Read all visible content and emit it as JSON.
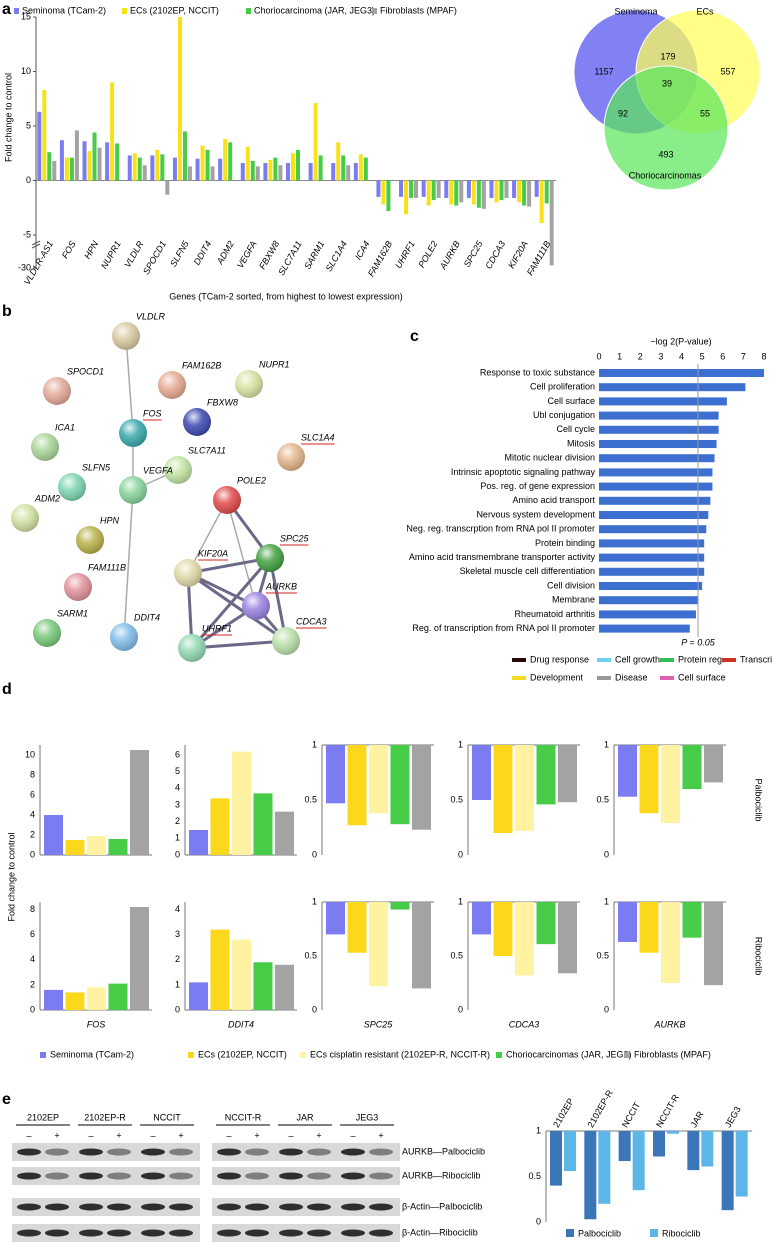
{
  "panel_labels": [
    "a",
    "b",
    "c",
    "d",
    "e"
  ],
  "chart_data": [
    {
      "type": "bar",
      "y_label": "Fold change to control",
      "x_label": "Genes (TCam-2 sorted, from highest to lowest expression)",
      "categories": [
        "VLDLR-AS1",
        "FOS",
        "HPN",
        "NUPR1",
        "VLDLR",
        "SPOCD1",
        "SLFN5",
        "DDIT4",
        "ADM2",
        "VEGFA",
        "FBXW8",
        "SLC7A11",
        "SARM1",
        "SLC1A4",
        "ICA4",
        "FAM162B",
        "UHRF1",
        "POLE2",
        "AURKB",
        "SPC25",
        "CDCA3",
        "KIF20A",
        "FAM111B"
      ],
      "category_colors": [
        "#d42020",
        "#d42020",
        "#000000",
        "#000000",
        "#000000",
        "#000000",
        "#000000",
        "#000000",
        "#000000",
        "#000000",
        "#000000",
        "#000000",
        "#000000",
        "#d42020",
        "#000000",
        "#000000",
        "#d42020",
        "#d42020",
        "#d42020",
        "#d42020",
        "#d42020",
        "#d42020",
        "#d42020"
      ],
      "series": [
        {
          "name": "Seminoma (TCam-2)",
          "color": "#7b7bf2",
          "values": [
            6.3,
            3.7,
            3.6,
            3.5,
            2.3,
            2.3,
            2.1,
            2.0,
            2.0,
            1.6,
            1.6,
            1.6,
            1.6,
            1.6,
            1.6,
            -1.5,
            -1.5,
            -1.5,
            -1.6,
            -1.6,
            -1.6,
            -1.6,
            -1.5
          ]
        },
        {
          "name": "ECs (2102EP, NCCIT)",
          "color": "#f7e21a",
          "values": [
            8.3,
            2.1,
            2.7,
            9.0,
            2.5,
            2.8,
            15,
            3.2,
            3.8,
            3.1,
            1.9,
            2.5,
            7.1,
            3.5,
            2.4,
            -2.2,
            -3.1,
            -2.3,
            -2.2,
            -2.2,
            -2.0,
            -2.0,
            -3.9
          ]
        },
        {
          "name": "Choriocarcinoma (JAR, JEG3)",
          "color": "#46cc46",
          "values": [
            2.6,
            2.1,
            4.4,
            3.4,
            2.1,
            2.4,
            4.5,
            2.8,
            3.5,
            1.8,
            2.1,
            2.8,
            2.3,
            2.3,
            2.1,
            -2.8,
            -1.6,
            -1.8,
            -2.3,
            -2.5,
            -1.8,
            -2.3,
            -2.1
          ]
        },
        {
          "name": "Fibroblasts (MPAF)",
          "color": "#a3a3a3",
          "values": [
            1.8,
            4.6,
            3.0,
            null,
            1.4,
            -1.3,
            1.3,
            1.3,
            null,
            1.3,
            1.4,
            null,
            null,
            1.4,
            null,
            null,
            -1.6,
            -1.6,
            -2.0,
            -2.6,
            -1.6,
            -2.4,
            -28
          ]
        }
      ],
      "ylim": [
        -30,
        15
      ],
      "yticks": [
        15,
        10,
        5,
        0,
        -5,
        -30
      ],
      "axis_break": true,
      "legend": "top"
    },
    {
      "type": "venn",
      "sets": [
        {
          "name": "Seminoma",
          "color": "#5050f0",
          "label_color": "#2a2ae0"
        },
        {
          "name": "ECs",
          "color": "#ffff5a",
          "label_color": "#85852a"
        },
        {
          "name": "Choriocarcinomas",
          "color": "#5ce65c",
          "label_color": "#229922"
        }
      ],
      "values": [
        1157,
        557,
        493,
        179,
        92,
        55,
        39
      ]
    },
    {
      "type": "barh",
      "x_label": "−log 2(P-value)",
      "categories": [
        "Response to toxic substance",
        "Cell proliferation",
        "Cell surface",
        "Ubl conjugation",
        "Cell cycle",
        "Mitosis",
        "Mitotic nuclear division",
        "Intrinsic apoptotic signaling pathway",
        "Pos. reg. of gene expression",
        "Amino acid transport",
        "Nervous system development",
        "Neg. reg. transcrption from RNA pol II promoter",
        "Protein binding",
        "Amino acid transmembrane transporter activity",
        "Skeletal muscle cell differentiation",
        "Cell division",
        "Membrane",
        "Rheumatoid arthritis",
        "Reg. of transcription from RNA pol II promoter"
      ],
      "category_colors": [
        "#000000",
        "#2fa8d8",
        "#e060a8",
        "#33aa33",
        "#2fa8d8",
        "#2fa8d8",
        "#2fa8d8",
        "#000000",
        "#d83020",
        "#33aa33",
        "#e8c820",
        "#d83020",
        "#33aa33",
        "#33aa33",
        "#e8c820",
        "#2fa8d8",
        "#e060a8",
        "#888888",
        "#d83020"
      ],
      "values": [
        8.0,
        7.1,
        6.2,
        5.8,
        5.8,
        5.7,
        5.6,
        5.5,
        5.5,
        5.4,
        5.3,
        5.2,
        5.1,
        5.1,
        5.1,
        5.0,
        4.8,
        4.7,
        4.4
      ],
      "color": "#3d6fd0",
      "xlim": [
        0,
        8
      ],
      "xticks": [
        0,
        1,
        2,
        3,
        4,
        5,
        6,
        7,
        8
      ],
      "ref_line": {
        "value": 4.8,
        "label": "P = 0.05"
      },
      "legend": [
        {
          "name": "Drug response",
          "color": "#2a0808"
        },
        {
          "name": "Cell growth",
          "color": "#6cd0f0"
        },
        {
          "name": "Protein reg.",
          "color": "#33bb55"
        },
        {
          "name": "Transcription",
          "color": "#cc3322"
        },
        {
          "name": "Development",
          "color": "#f2dc22"
        },
        {
          "name": "Disease",
          "color": "#999999"
        },
        {
          "name": "Cell surface",
          "color": "#e060b0"
        }
      ]
    },
    {
      "type": "bar-grid",
      "y_label": "Fold change to control",
      "series": [
        {
          "name": "Seminoma (TCam-2)",
          "color": "#7b7bf2"
        },
        {
          "name": "ECs (2102EP, NCCIT)",
          "color": "#fcd81c"
        },
        {
          "name": "ECs cisplatin resistant (2102EP-R, NCCIT-R)",
          "color": "#fff2a0"
        },
        {
          "name": "Choriocarcinomas (JAR, JEG3)",
          "color": "#46cc46"
        },
        {
          "name": "Fibroblasts (MPAF)",
          "color": "#a3a3a3"
        }
      ],
      "row_labels": [
        "Palbociclib",
        "Ribociclib"
      ],
      "categories": [
        "FOS",
        "DDIT4",
        "SPC25",
        "CDCA3",
        "AURKB"
      ],
      "panels": [
        [
          {
            "ylim": [
              0,
              11
            ],
            "yticks": [
              0,
              2,
              4,
              6,
              8,
              10
            ],
            "values": [
              4.0,
              1.5,
              1.9,
              1.6,
              10.5
            ]
          },
          {
            "ylim": [
              0,
              6.6
            ],
            "yticks": [
              0,
              1,
              2,
              3,
              4,
              5,
              6
            ],
            "values": [
              1.5,
              3.4,
              6.2,
              3.7,
              2.6
            ]
          },
          {
            "ylim": [
              0,
              1
            ],
            "yticks": [
              0,
              0.5,
              1
            ],
            "base": 1,
            "values": [
              0.47,
              0.27,
              0.38,
              0.28,
              0.23
            ]
          },
          {
            "ylim": [
              0,
              1
            ],
            "yticks": [
              0,
              0.5,
              1
            ],
            "base": 1,
            "values": [
              0.5,
              0.2,
              0.22,
              0.46,
              0.48
            ]
          },
          {
            "ylim": [
              0,
              1
            ],
            "yticks": [
              0,
              0.5,
              1
            ],
            "base": 1,
            "values": [
              0.53,
              0.38,
              0.29,
              0.6,
              0.66
            ]
          }
        ],
        [
          {
            "ylim": [
              0,
              8.6
            ],
            "yticks": [
              0,
              2,
              4,
              6,
              8
            ],
            "values": [
              1.6,
              1.4,
              1.8,
              2.1,
              8.2
            ]
          },
          {
            "ylim": [
              0,
              4.3
            ],
            "yticks": [
              0,
              1,
              2,
              3,
              4
            ],
            "values": [
              1.1,
              3.2,
              2.8,
              1.9,
              1.8
            ]
          },
          {
            "ylim": [
              0,
              1
            ],
            "yticks": [
              0,
              0.5,
              1
            ],
            "base": 1,
            "values": [
              0.7,
              0.53,
              0.22,
              0.93,
              0.2
            ]
          },
          {
            "ylim": [
              0,
              1
            ],
            "yticks": [
              0,
              0.5,
              1
            ],
            "base": 1,
            "values": [
              0.7,
              0.5,
              0.32,
              0.61,
              0.34
            ]
          },
          {
            "ylim": [
              0,
              1
            ],
            "yticks": [
              0,
              0.5,
              1
            ],
            "base": 1,
            "values": [
              0.63,
              0.53,
              0.25,
              0.67,
              0.23
            ]
          }
        ]
      ]
    },
    {
      "type": "bar",
      "categories": [
        "2102EP",
        "2102EP-R",
        "NCCIT",
        "NCCIT-R",
        "JAR",
        "JEG3"
      ],
      "series": [
        {
          "name": "Palbociclib",
          "color": "#3b77b8",
          "values": [
            0.4,
            0.03,
            0.67,
            0.72,
            0.57,
            0.13
          ]
        },
        {
          "name": "Ribociclib",
          "color": "#5cb6e8",
          "values": [
            0.56,
            0.2,
            0.35,
            0.97,
            0.61,
            0.28
          ]
        }
      ],
      "ylim": [
        0,
        1
      ],
      "yticks": [
        0,
        0.5,
        1
      ],
      "base": 1,
      "legend": "bottom"
    }
  ],
  "network": {
    "nodes": [
      "VLDLR",
      "SPOCD1",
      "FAM162B",
      "NUPR1",
      "FOS",
      "FBXW8",
      "ICA1",
      "SLC1A4",
      "SLFN5",
      "SLC7A11",
      "ADM2",
      "VEGFA",
      "POLE2",
      "HPN",
      "KIF20A",
      "SPC25",
      "FAM111B",
      "AURKB",
      "SARM1",
      "DDIT4",
      "UHRF1",
      "CDCA3"
    ]
  },
  "blot": {
    "groups": [
      {
        "name": "2102EP",
        "lanes": [
          "–",
          "+"
        ]
      },
      {
        "name": "2102EP-R",
        "lanes": [
          "–",
          "+"
        ]
      },
      {
        "name": "NCCIT",
        "lanes": [
          "–",
          "+"
        ]
      },
      {
        "name": "NCCIT-R",
        "lanes": [
          "–",
          "+"
        ]
      },
      {
        "name": "JAR",
        "lanes": [
          "–",
          "+"
        ]
      },
      {
        "name": "JEG3",
        "lanes": [
          "–",
          "+"
        ]
      }
    ],
    "rows": [
      "AURKB—Palbociclib",
      "AURKB—Ribociclib",
      "β-Actin—Palbociclib",
      "β-Actin—Ribociclib"
    ]
  }
}
